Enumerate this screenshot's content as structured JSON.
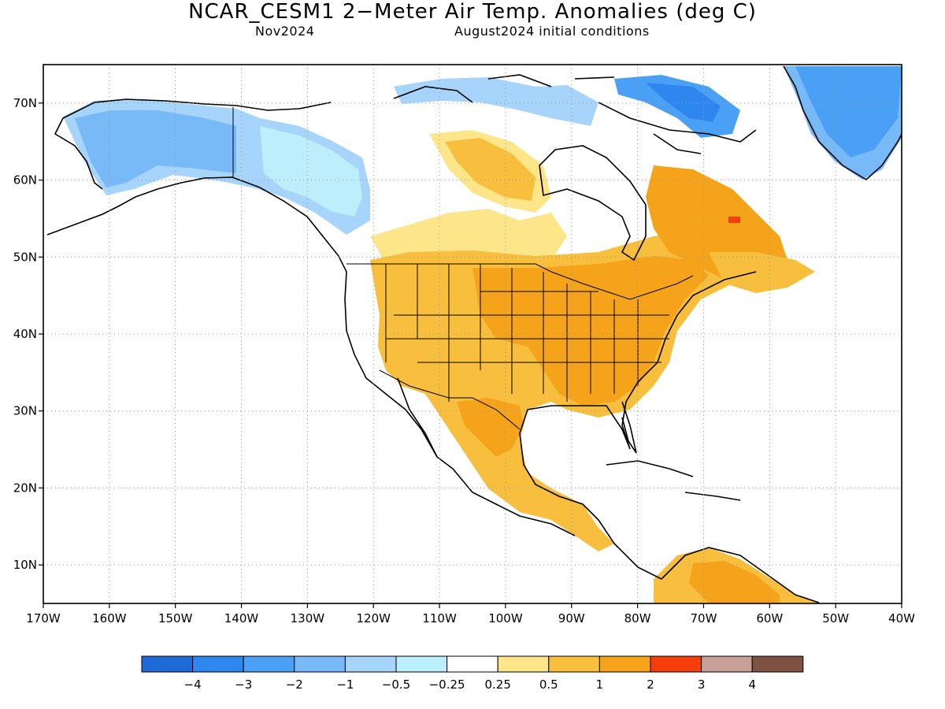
{
  "title": "NCAR_CESM1 2−Meter Air Temp. Anomalies (deg C)",
  "subtitle_left": "Nov2024",
  "subtitle_right": "August2024 initial conditions",
  "map": {
    "lat_range": [
      5,
      75
    ],
    "lon_range": [
      -170,
      -40
    ],
    "lat_labels": [
      "70N",
      "60N",
      "50N",
      "40N",
      "30N",
      "20N",
      "10N"
    ],
    "lon_labels": [
      "170W",
      "160W",
      "150W",
      "140W",
      "130W",
      "120W",
      "110W",
      "100W",
      "90W",
      "80W",
      "70W",
      "60W",
      "50W",
      "40W"
    ],
    "grid": true
  },
  "legend": {
    "colors": [
      "#1f6ad6",
      "#2f86ee",
      "#4aa0f5",
      "#78b9f8",
      "#a7d4fb",
      "#bdeefb",
      "#ffffff",
      "#fde58a",
      "#f8bf3e",
      "#f5a31b",
      "#f63d0d",
      "#c7a198",
      "#7e5243"
    ],
    "labels": [
      "−4",
      "−3",
      "−2",
      "−1",
      "−0.5",
      "−0.25",
      "0.25",
      "0.5",
      "1",
      "2",
      "3",
      "4"
    ]
  }
}
